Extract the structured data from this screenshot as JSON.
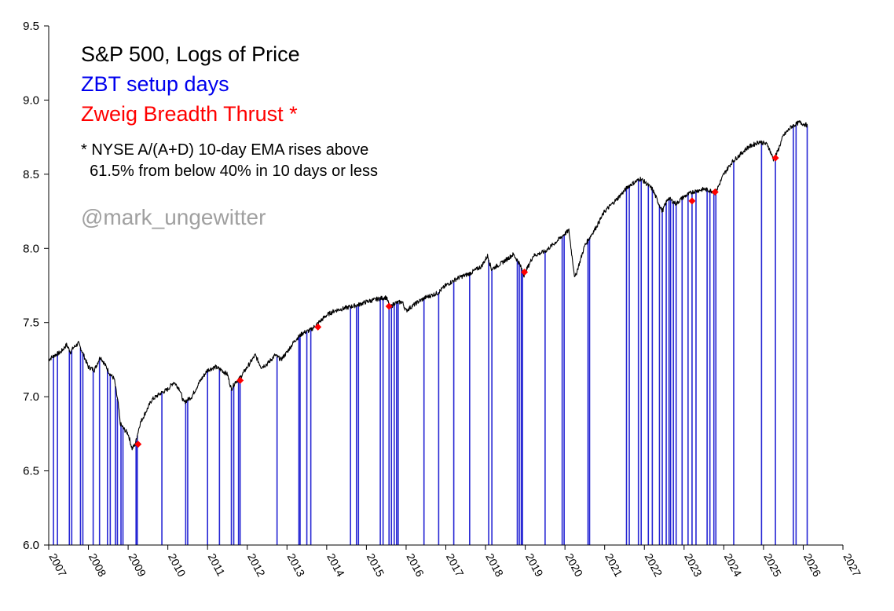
{
  "chart_data": {
    "type": "line",
    "title": "S&P 500, Logs of Price",
    "legend": {
      "setup_label": "ZBT setup days",
      "thrust_label": "Zweig Breadth Thrust *",
      "footnote_line1": "* NYSE A/(A+D) 10-day EMA rises above",
      "footnote_line2": "61.5% from below 40% in 10 days or less",
      "credit": "@mark_ungewitter"
    },
    "colors": {
      "price": "#000000",
      "setup": "#0000cc",
      "thrust": "#ff0000",
      "axis": "#000000",
      "credit": "#a0a0a0"
    },
    "xlim": [
      2007,
      2027
    ],
    "ylim": [
      6.0,
      9.5
    ],
    "yticks": [
      6.0,
      6.5,
      7.0,
      7.5,
      8.0,
      8.5,
      9.0,
      9.5
    ],
    "ytick_labels": [
      "6.0",
      "6.5",
      "7.0",
      "7.5",
      "8.0",
      "8.5",
      "9.0",
      "9.5"
    ],
    "xticks": [
      2007,
      2008,
      2009,
      2010,
      2011,
      2012,
      2013,
      2014,
      2015,
      2016,
      2017,
      2018,
      2019,
      2020,
      2021,
      2022,
      2023,
      2024,
      2025,
      2026,
      2027
    ],
    "xtick_labels": [
      "2007",
      "2008",
      "2009",
      "2010",
      "2011",
      "2012",
      "2013",
      "2014",
      "2015",
      "2016",
      "2017",
      "2018",
      "2019",
      "2020",
      "2021",
      "2022",
      "2023",
      "2024",
      "2025",
      "2026",
      "2027"
    ],
    "price_series": {
      "name": "S&P 500 log price",
      "x": [
        2007.0,
        2007.15,
        2007.3,
        2007.45,
        2007.55,
        2007.62,
        2007.75,
        2007.85,
        2008.0,
        2008.15,
        2008.3,
        2008.45,
        2008.55,
        2008.65,
        2008.75,
        2008.8,
        2008.9,
        2009.0,
        2009.1,
        2009.18,
        2009.3,
        2009.45,
        2009.6,
        2009.8,
        2010.0,
        2010.15,
        2010.3,
        2010.4,
        2010.5,
        2010.6,
        2010.8,
        2011.0,
        2011.2,
        2011.35,
        2011.5,
        2011.6,
        2011.7,
        2011.8,
        2012.0,
        2012.2,
        2012.35,
        2012.5,
        2012.7,
        2012.85,
        2013.0,
        2013.2,
        2013.4,
        2013.6,
        2013.8,
        2014.0,
        2014.2,
        2014.5,
        2014.8,
        2015.0,
        2015.3,
        2015.5,
        2015.6,
        2015.7,
        2015.9,
        2016.0,
        2016.1,
        2016.3,
        2016.5,
        2016.8,
        2017.0,
        2017.3,
        2017.6,
        2017.9,
        2018.05,
        2018.15,
        2018.4,
        2018.7,
        2018.85,
        2018.97,
        2019.2,
        2019.5,
        2019.8,
        2020.0,
        2020.1,
        2020.2,
        2020.25,
        2020.5,
        2020.8,
        2021.0,
        2021.3,
        2021.6,
        2021.9,
        2022.0,
        2022.2,
        2022.45,
        2022.6,
        2022.8,
        2022.95,
        2023.2,
        2023.5,
        2023.8,
        2024.0,
        2024.2,
        2024.4,
        2024.6,
        2024.9,
        2025.1,
        2025.25,
        2025.35,
        2025.5,
        2025.7,
        2025.9,
        2026.1
      ],
      "y": [
        7.25,
        7.28,
        7.3,
        7.35,
        7.3,
        7.33,
        7.36,
        7.3,
        7.2,
        7.18,
        7.27,
        7.2,
        7.15,
        7.12,
        6.95,
        6.82,
        6.78,
        6.75,
        6.65,
        6.68,
        6.82,
        6.9,
        6.98,
        7.02,
        7.05,
        7.1,
        7.05,
        6.96,
        6.98,
        7.0,
        7.1,
        7.18,
        7.2,
        7.18,
        7.15,
        7.05,
        7.1,
        7.12,
        7.2,
        7.28,
        7.2,
        7.22,
        7.28,
        7.25,
        7.3,
        7.38,
        7.43,
        7.45,
        7.5,
        7.55,
        7.58,
        7.6,
        7.62,
        7.64,
        7.66,
        7.67,
        7.6,
        7.63,
        7.64,
        7.58,
        7.6,
        7.64,
        7.67,
        7.7,
        7.75,
        7.8,
        7.83,
        7.88,
        7.95,
        7.86,
        7.9,
        7.96,
        7.9,
        7.82,
        7.95,
        7.98,
        8.05,
        8.1,
        8.12,
        7.9,
        7.8,
        8.02,
        8.15,
        8.25,
        8.33,
        8.42,
        8.47,
        8.45,
        8.4,
        8.25,
        8.34,
        8.3,
        8.34,
        8.38,
        8.4,
        8.38,
        8.5,
        8.58,
        8.63,
        8.68,
        8.72,
        8.7,
        8.6,
        8.65,
        8.76,
        8.82,
        8.85,
        8.83
      ]
    },
    "setup_days": [
      2007.12,
      2007.22,
      2007.52,
      2007.58,
      2007.8,
      2007.86,
      2008.12,
      2008.28,
      2008.48,
      2008.55,
      2008.68,
      2008.73,
      2008.82,
      2008.87,
      2009.2,
      2009.23,
      2009.85,
      2010.45,
      2010.5,
      2011.0,
      2011.3,
      2011.6,
      2011.66,
      2011.78,
      2011.82,
      2012.75,
      2013.3,
      2013.33,
      2013.5,
      2013.6,
      2014.6,
      2014.75,
      2014.8,
      2015.35,
      2015.42,
      2015.57,
      2015.63,
      2015.7,
      2015.76,
      2015.8,
      2016.45,
      2016.82,
      2017.2,
      2017.6,
      2018.08,
      2018.16,
      2018.8,
      2018.85,
      2018.9,
      2018.93,
      2019.5,
      2019.93,
      2019.98,
      2020.58,
      2020.62,
      2021.55,
      2021.62,
      2021.85,
      2021.92,
      2022.1,
      2022.2,
      2022.38,
      2022.45,
      2022.55,
      2022.62,
      2022.66,
      2022.73,
      2022.8,
      2022.95,
      2023.1,
      2023.2,
      2023.3,
      2023.58,
      2023.65,
      2023.75,
      2023.8,
      2024.25,
      2024.95,
      2025.3,
      2025.75,
      2025.82,
      2026.1
    ],
    "thrust_points": {
      "x": [
        2009.25,
        2011.82,
        2013.78,
        2015.57,
        2018.98,
        2023.2,
        2023.78,
        2025.3
      ],
      "y": [
        6.68,
        7.11,
        7.47,
        7.61,
        7.84,
        8.32,
        8.38,
        8.61
      ]
    }
  }
}
